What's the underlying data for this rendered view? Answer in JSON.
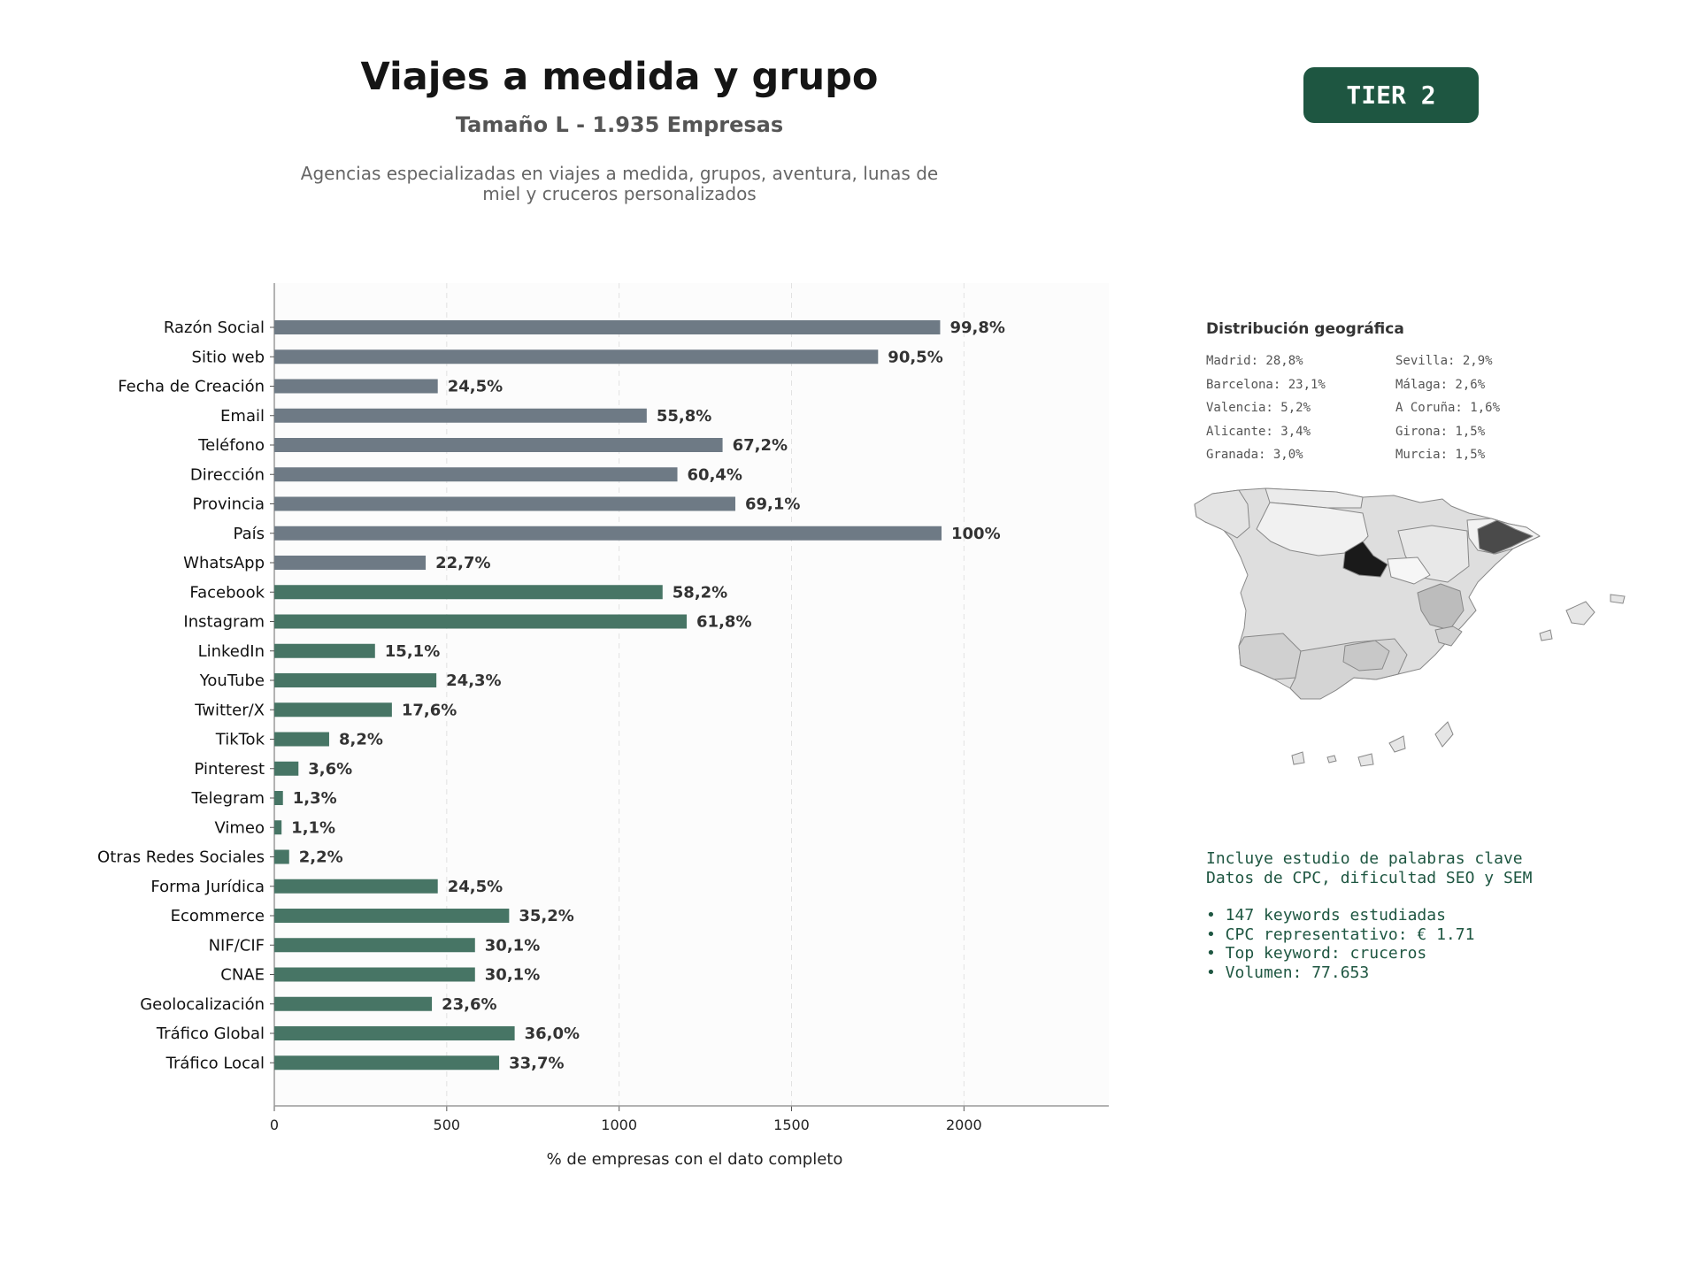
{
  "header": {
    "title": "Viajes a medida y grupo",
    "subtitle": "Tamaño L - 1.935 Empresas",
    "description": "Agencias especializadas en viajes a medida, grupos, aventura, lunas de miel y cruceros personalizados",
    "tier": "TIER 2"
  },
  "chart_data": {
    "type": "bar",
    "orientation": "horizontal",
    "xlabel": "% de empresas con el dato completo",
    "xlim": [
      0,
      2420
    ],
    "xticks": [
      0,
      500,
      1000,
      1500,
      2000
    ],
    "grid": "vertical dashed",
    "categories": [
      "Razón Social",
      "Sitio web",
      "Fecha de Creación",
      "Email",
      "Teléfono",
      "Dirección",
      "Provincia",
      "País",
      "WhatsApp",
      "Facebook",
      "Instagram",
      "LinkedIn",
      "YouTube",
      "Twitter/X",
      "TikTok",
      "Pinterest",
      "Telegram",
      "Vimeo",
      "Otras Redes Sociales",
      "Forma Jurídica",
      "Ecommerce",
      "NIF/CIF",
      "CNAE",
      "Geolocalización",
      "Tráfico Global",
      "Tráfico Local"
    ],
    "values": [
      1931,
      1751,
      474,
      1080,
      1300,
      1169,
      1337,
      1935,
      439,
      1126,
      1196,
      292,
      470,
      341,
      159,
      70,
      25,
      21,
      43,
      474,
      681,
      582,
      582,
      457,
      697,
      652
    ],
    "labels": [
      "99,8%",
      "90,5%",
      "24,5%",
      "55,8%",
      "67,2%",
      "60,4%",
      "69,1%",
      "100%",
      "22,7%",
      "58,2%",
      "61,8%",
      "15,1%",
      "24,3%",
      "17,6%",
      "8,2%",
      "3,6%",
      "1,3%",
      "1,1%",
      "2,2%",
      "24,5%",
      "35,2%",
      "30,1%",
      "30,1%",
      "23,6%",
      "36,0%",
      "33,7%"
    ],
    "groups": [
      "gray",
      "gray",
      "gray",
      "gray",
      "gray",
      "gray",
      "gray",
      "gray",
      "gray",
      "green",
      "green",
      "green",
      "green",
      "green",
      "green",
      "green",
      "green",
      "green",
      "green",
      "green",
      "green",
      "green",
      "green",
      "green",
      "green",
      "green"
    ],
    "colors": {
      "gray": "#6e7a85",
      "green": "#477565"
    }
  },
  "geo": {
    "title": "Distribución geográfica",
    "items": [
      "Madrid: 28,8%",
      "Barcelona: 23,1%",
      "Valencia: 5,2%",
      "Alicante: 3,4%",
      "Granada: 3,0%",
      "Sevilla: 2,9%",
      "Málaga: 2,6%",
      "A Coruña: 1,6%",
      "Girona: 1,5%",
      "Murcia: 1,5%"
    ]
  },
  "keywords": {
    "line1": "Incluye estudio de palabras clave",
    "line2": "Datos de CPC, dificultad SEO y SEM",
    "bullets": [
      "• 147 keywords estudiadas",
      "• CPC representativo: € 1.71",
      "• Top keyword: cruceros",
      "• Volumen: 77.653"
    ]
  }
}
